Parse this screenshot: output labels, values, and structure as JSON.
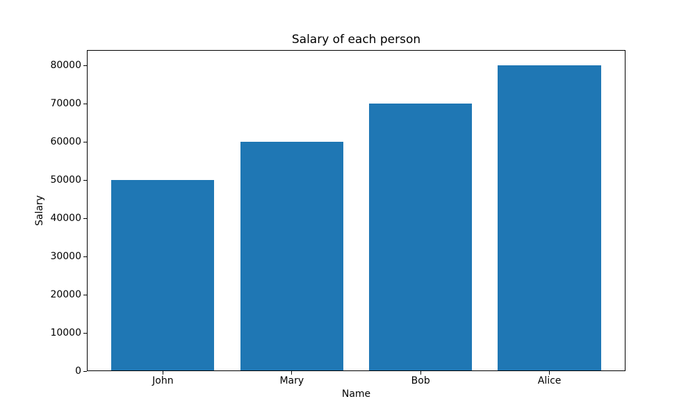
{
  "chart_data": {
    "type": "bar",
    "title": "Salary of each person",
    "xlabel": "Name",
    "ylabel": "Salary",
    "categories": [
      "John",
      "Mary",
      "Bob",
      "Alice"
    ],
    "values": [
      50000,
      60000,
      70000,
      80000
    ],
    "yticks": [
      0,
      10000,
      20000,
      30000,
      40000,
      50000,
      60000,
      70000,
      80000
    ],
    "ytick_labels": [
      "0",
      "10000",
      "20000",
      "30000",
      "40000",
      "50000",
      "60000",
      "70000",
      "80000"
    ],
    "ylim": [
      0,
      84000
    ],
    "xlim": [
      -0.59,
      3.59
    ],
    "bar_width": 0.8,
    "bar_color": "#1f77b4",
    "axis_color": "#000000",
    "background_color": "#ffffff",
    "grid": false,
    "legend_position": "none"
  }
}
